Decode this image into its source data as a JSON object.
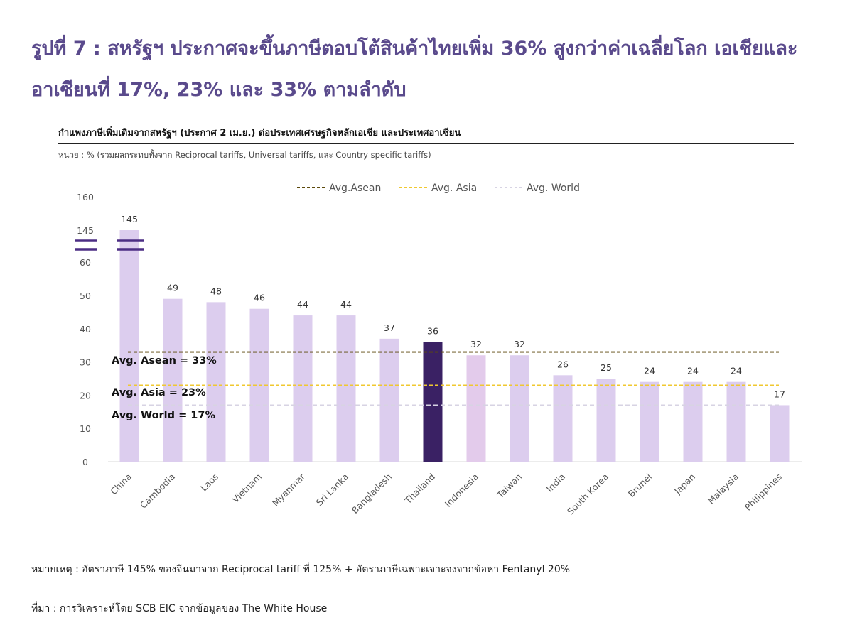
{
  "figure_title": "รูปที่ 7 : สหรัฐฯ ประกาศจะขึ้นภาษีตอบโต้สินค้าไทยเพิ่ม 36% สูงกว่าค่าเฉลี่ยโลก เอเชียและอาเซียนที่ 17%, 23% และ 33% ตามลำดับ",
  "note": "หมายเหตุ : อัตราภาษี 145% ของจีนมาจาก Reciprocal tariff ที่ 125% + อัตราภาษีเฉพาะเจาะจงจากข้อหา Fentanyl 20%",
  "source": "ที่มา : การวิเคราะห์โดย SCB EIC จากข้อมูลของ The White House",
  "colors": {
    "bar": "#dccdee",
    "highlight": "#3a2164",
    "indonesia": "#e3cbeb",
    "asean_line": "#5c4a0c",
    "asia_line": "#f0c830",
    "world_line": "#d7d3e3",
    "break_mark": "#4b2d84"
  },
  "chart_data": {
    "type": "bar",
    "title": "กำแพงภาษีเพิ่มเติมจากสหรัฐฯ (ประกาศ 2 เม.ย.) ต่อประเทศเศรษฐกิจหลักเอเชีย และประเทศอาเซียน",
    "subtitle": "หน่วย : % (รวมผลกระทบทั้งจาก Reciprocal tariffs, Universal tariffs, และ Country specific tariffs)",
    "categories": [
      "China",
      "Cambodia",
      "Laos",
      "Vietnam",
      "Myanmar",
      "Sri Lanka",
      "Bangladesh",
      "Thailand",
      "Indonesia",
      "Taiwan",
      "India",
      "South Korea",
      "Brunei",
      "Japan",
      "Malaysia",
      "Philippines"
    ],
    "values": [
      145,
      49,
      48,
      46,
      44,
      44,
      37,
      36,
      32,
      32,
      26,
      25,
      24,
      24,
      24,
      17
    ],
    "data_labels": [
      "145",
      "49",
      "48",
      "46",
      "44",
      "44",
      "37",
      "36",
      "32",
      "32",
      "26",
      "25",
      "24",
      "24",
      "24",
      "17"
    ],
    "highlight_category": "Thailand",
    "yaxis": {
      "ticks": [
        "0",
        "10",
        "20",
        "30",
        "40",
        "50",
        "60",
        "145",
        "160"
      ],
      "broken_axis": true,
      "break_between": [
        60,
        145
      ],
      "lower_range": [
        0,
        60
      ]
    },
    "reference_lines": [
      {
        "name": "Avg.Asean",
        "value": 33,
        "label": "Avg. Asean = 33%",
        "style": "dashed"
      },
      {
        "name": "Avg. Asia",
        "value": 23,
        "label": "Avg. Asia = 23%",
        "style": "dashed"
      },
      {
        "name": "Avg. World",
        "value": 17,
        "label": "Avg. World = 17%",
        "style": "dashed"
      }
    ],
    "legend_position": "top-center",
    "grid": false
  }
}
